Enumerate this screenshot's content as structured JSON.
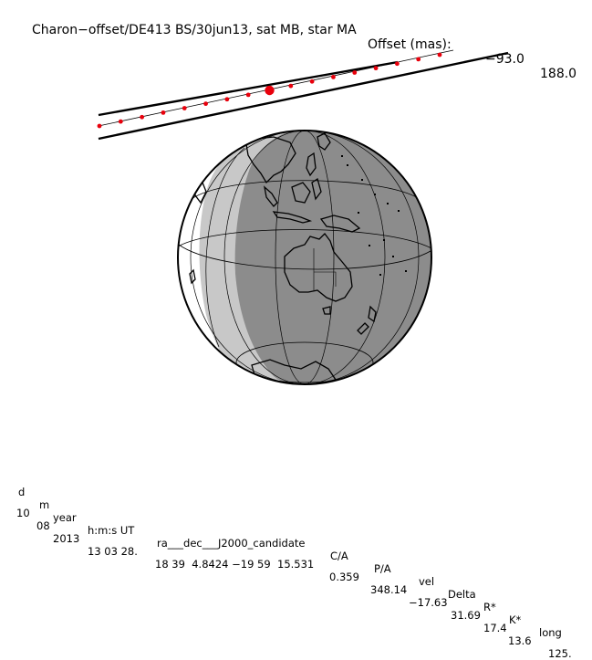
{
  "header": {
    "title": "Charon−offset/DE413 BS/30jun13, sat MB, star MA",
    "offset_label": "Offset (mas):",
    "offset_x": "−93.0",
    "offset_y": "188.0"
  },
  "table": {
    "headers": [
      "d",
      "m",
      "year",
      "h:m:s UT",
      "ra___dec___J2000_candidate",
      "C/A",
      "P/A",
      "vel",
      "Delta",
      "R*",
      "K*",
      "long"
    ],
    "values": [
      "10",
      "08",
      "2013",
      "13 03 28.",
      "18 39  4.8424 −19 59  15.531",
      "0.359",
      "348.14",
      "−17.63",
      "31.69",
      "17.4",
      "13.6",
      "125."
    ]
  },
  "chart_data": {
    "type": "diagram",
    "track_dots": 17,
    "central_dot_index": 8,
    "colors": {
      "night": "#8c8c8c",
      "twilight": "#c8c8c8",
      "day": "#ffffff",
      "track_dot": "#e8000c",
      "lines": "#000000"
    }
  }
}
